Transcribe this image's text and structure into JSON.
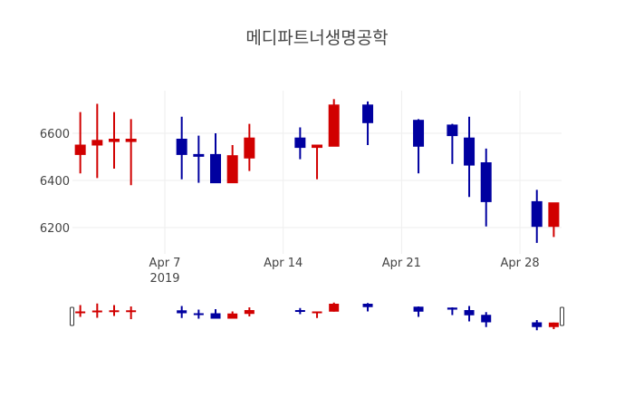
{
  "chart_data": {
    "type": "candlestick",
    "title": "메디파트너생명공학",
    "xlabel": "",
    "ylabel": "",
    "ylim": [
      6100,
      6780
    ],
    "yticks": [
      6200,
      6400,
      6600
    ],
    "xticks": [
      {
        "date": "2019-04-07",
        "label": "Apr 7",
        "sublabel": "2019"
      },
      {
        "date": "2019-04-14",
        "label": "Apr 14"
      },
      {
        "date": "2019-04-21",
        "label": "Apr 21"
      },
      {
        "date": "2019-04-28",
        "label": "Apr 28"
      }
    ],
    "grid": true,
    "legend": false,
    "rangeslider": true,
    "colors": {
      "increasing": "#d10000",
      "decreasing": "#0000a0"
    },
    "x": [
      "2019-04-02",
      "2019-04-03",
      "2019-04-04",
      "2019-04-05",
      "2019-04-08",
      "2019-04-09",
      "2019-04-10",
      "2019-04-11",
      "2019-04-12",
      "2019-04-15",
      "2019-04-16",
      "2019-04-17",
      "2019-04-19",
      "2019-04-22",
      "2019-04-24",
      "2019-04-25",
      "2019-04-26",
      "2019-04-29",
      "2019-04-30"
    ],
    "open": [
      6510,
      6550,
      6565,
      6565,
      6575,
      6510,
      6510,
      6390,
      6495,
      6580,
      6540,
      6545,
      6720,
      6655,
      6635,
      6580,
      6475,
      6310,
      6205
    ],
    "high": [
      6690,
      6725,
      6690,
      6660,
      6670,
      6590,
      6600,
      6550,
      6640,
      6625,
      6550,
      6745,
      6735,
      6660,
      6640,
      6670,
      6535,
      6360,
      6305
    ],
    "low": [
      6430,
      6410,
      6450,
      6380,
      6405,
      6390,
      6390,
      6390,
      6440,
      6490,
      6405,
      6545,
      6550,
      6430,
      6470,
      6330,
      6205,
      6135,
      6160
    ],
    "close": [
      6550,
      6570,
      6575,
      6575,
      6510,
      6505,
      6390,
      6505,
      6580,
      6540,
      6550,
      6720,
      6645,
      6545,
      6590,
      6465,
      6310,
      6205,
      6305
    ]
  }
}
